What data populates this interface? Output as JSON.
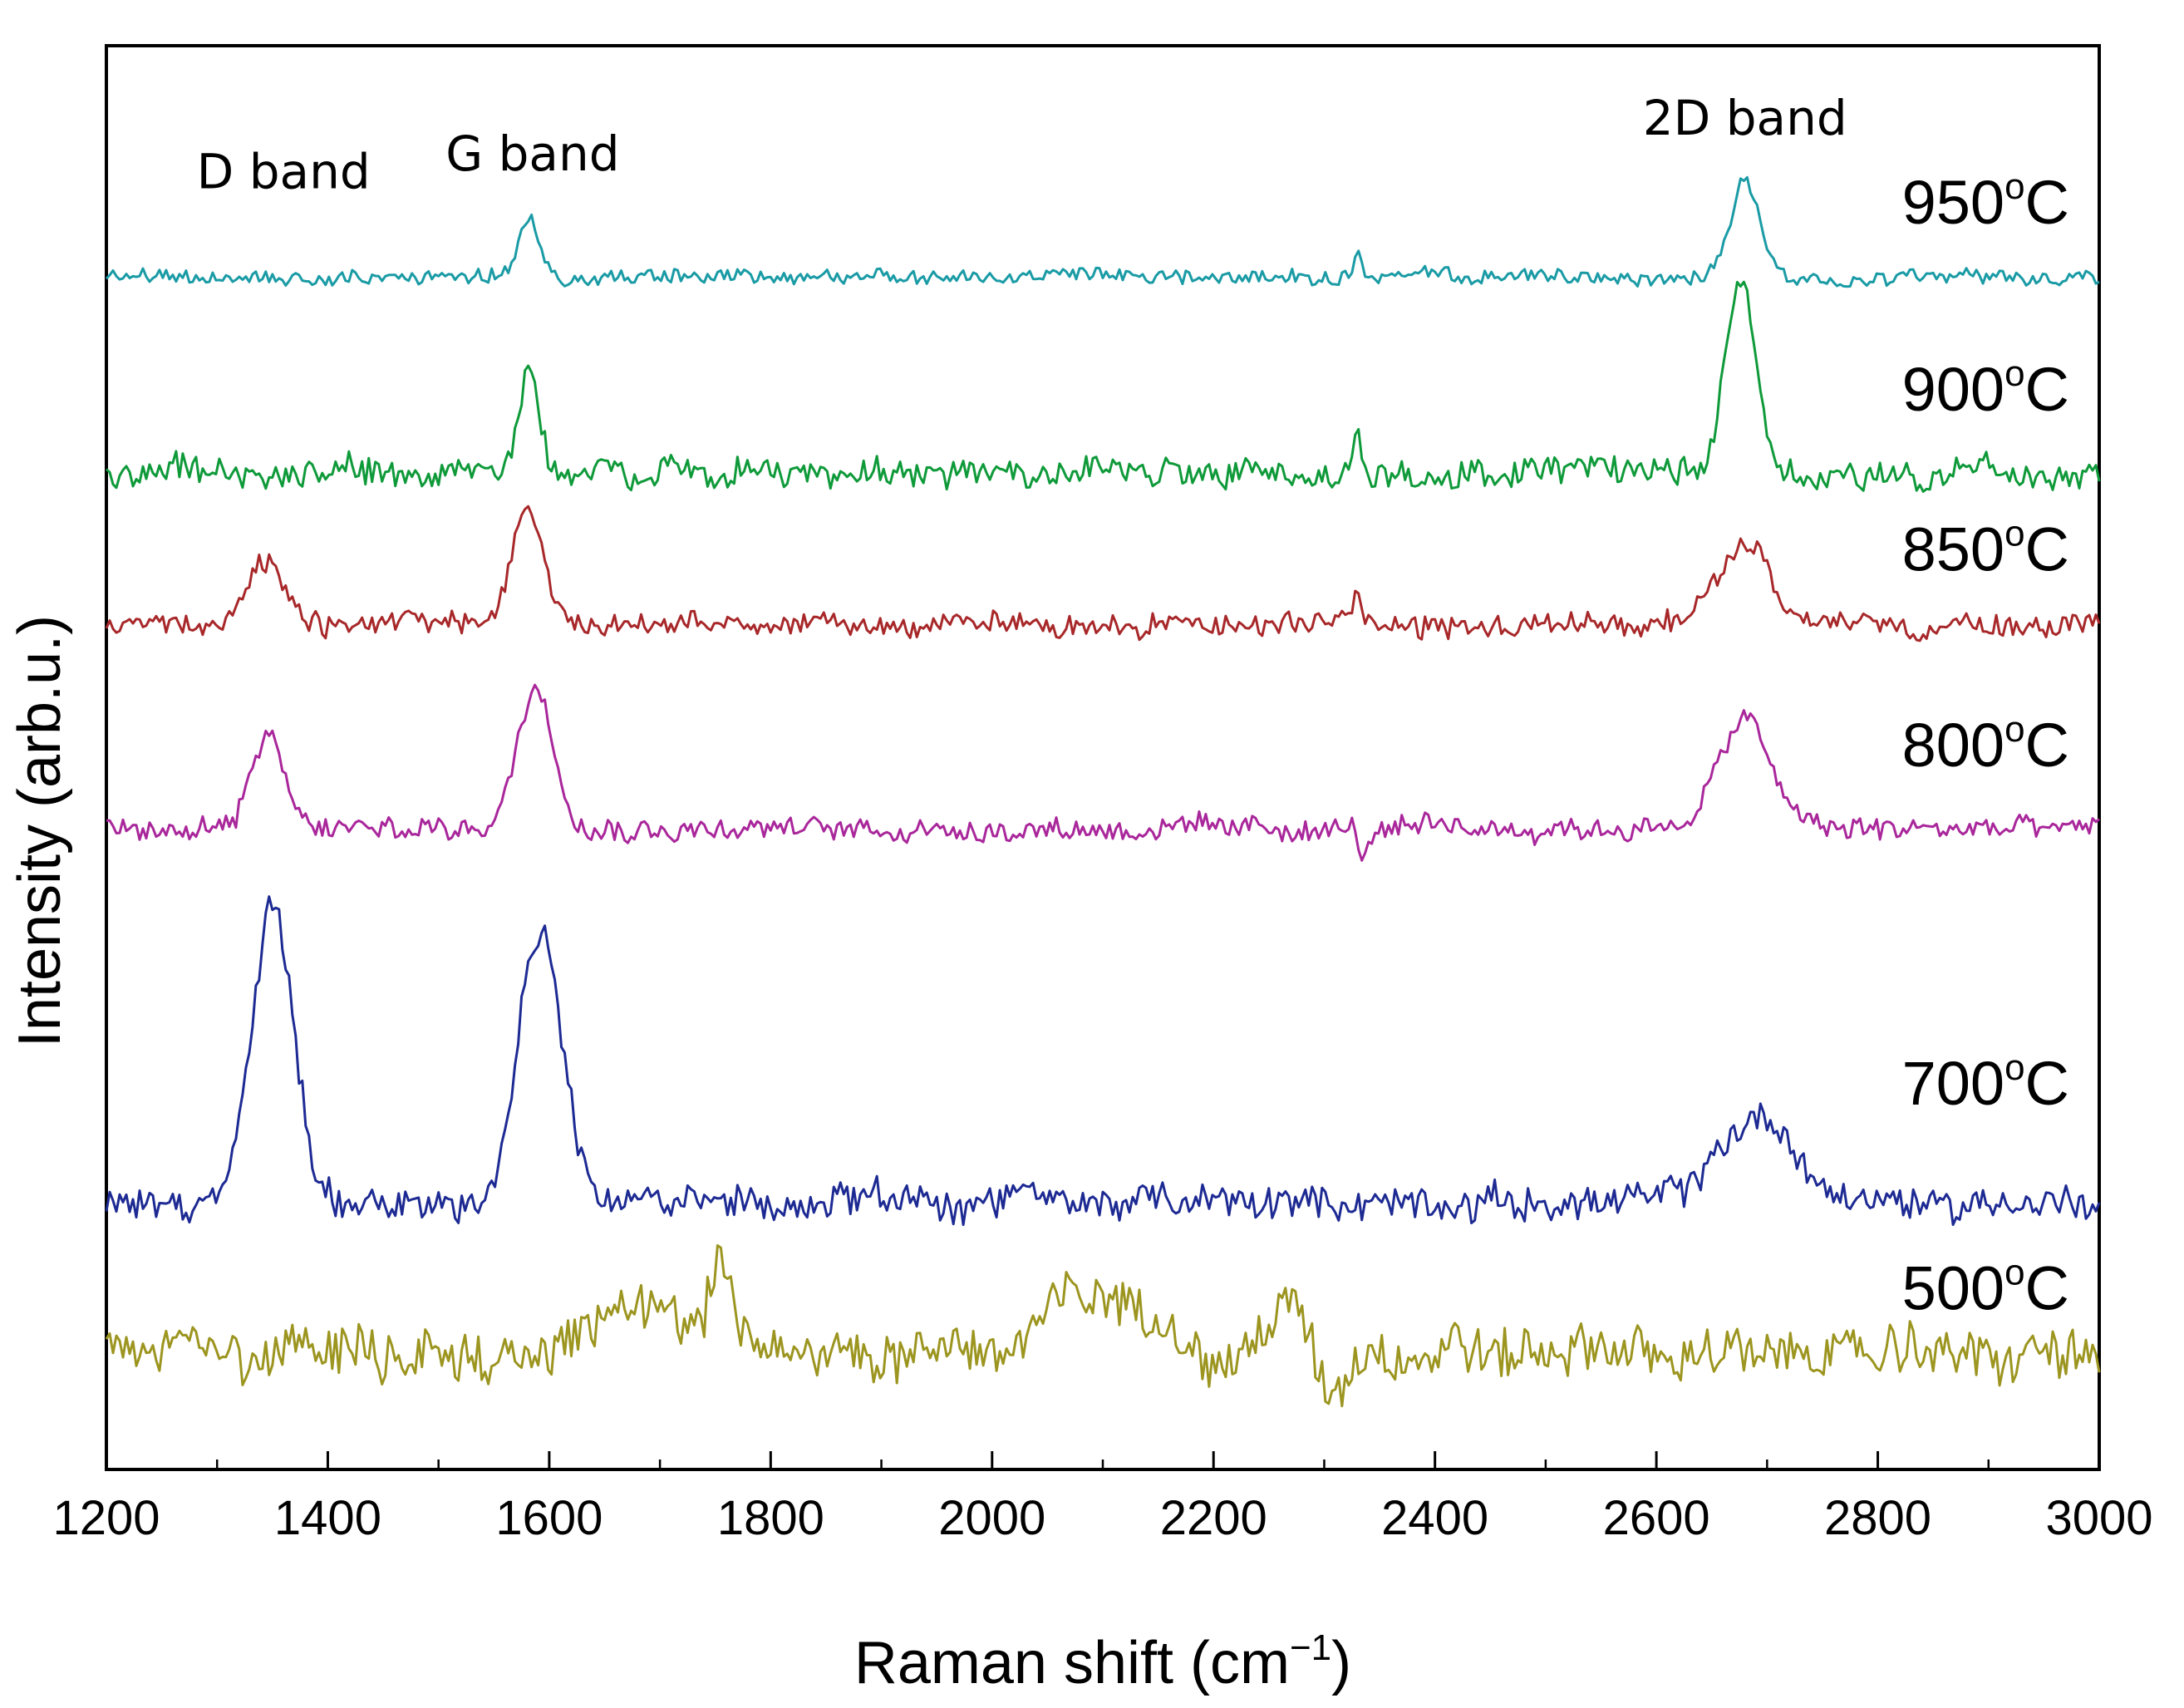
{
  "chart_data": {
    "type": "line",
    "title": "",
    "xlabel": "Raman shift (cm",
    "xlabel_sup": "−1",
    "xlabel_close": ")",
    "ylabel": "Intensity (arb.u.)",
    "xlim": [
      1200,
      3000
    ],
    "ylim": [
      0,
      16
    ],
    "grid": false,
    "legend": "none",
    "xticks": [
      1200,
      1400,
      1600,
      1800,
      2000,
      2200,
      2400,
      2600,
      2800,
      3000
    ],
    "annotations": [
      {
        "text": "D band",
        "x": 1360,
        "y": 14.4
      },
      {
        "text": "G band",
        "x": 1585,
        "y": 14.6
      },
      {
        "text": "2D band",
        "x": 2680,
        "y": 15.0
      }
    ],
    "series": [
      {
        "name": "950°C",
        "label_deg": "o",
        "label_unit": "C",
        "color": "#1a9ba5",
        "baseline": 13.4,
        "noise": 0.14,
        "label_y": 14.0,
        "peaks": [
          {
            "center": 1582,
            "height": 0.65,
            "width": 12
          },
          {
            "center": 2330,
            "height": 0.35,
            "width": 4
          },
          {
            "center": 2680,
            "height": 1.1,
            "width": 18
          }
        ]
      },
      {
        "name": "900°C",
        "label_deg": "o",
        "label_unit": "C",
        "color": "#0f9a3a",
        "baseline": 11.2,
        "noise": 0.28,
        "label_y": 11.9,
        "peaks": [
          {
            "center": 1582,
            "height": 1.1,
            "width": 14
          },
          {
            "center": 2330,
            "height": 0.5,
            "width": 4
          },
          {
            "center": 2676,
            "height": 2.1,
            "width": 20
          }
        ]
      },
      {
        "name": "850°C",
        "label_deg": "o",
        "label_unit": "C",
        "color": "#a8282a",
        "baseline": 9.5,
        "noise": 0.22,
        "label_y": 10.1,
        "peaks": [
          {
            "center": 1345,
            "height": 0.7,
            "width": 22
          },
          {
            "center": 1580,
            "height": 1.3,
            "width": 20
          },
          {
            "center": 2330,
            "height": 0.4,
            "width": 4
          },
          {
            "center": 2680,
            "height": 1.0,
            "width": 30
          }
        ]
      },
      {
        "name": "800°C",
        "label_deg": "o",
        "label_unit": "C",
        "color": "#a9279b",
        "baseline": 7.2,
        "noise": 0.22,
        "label_y": 7.9,
        "peaks": [
          {
            "center": 1345,
            "height": 1.0,
            "width": 22
          },
          {
            "center": 1588,
            "height": 1.6,
            "width": 24
          },
          {
            "center": 2335,
            "height": -0.4,
            "width": 5
          },
          {
            "center": 2680,
            "height": 1.2,
            "width": 34
          }
        ]
      },
      {
        "name": "700°C",
        "label_deg": "o",
        "label_unit": "C",
        "color": "#1d2a93",
        "baseline": 3.0,
        "noise": 0.32,
        "label_y": 4.1,
        "peaks": [
          {
            "center": 1350,
            "height": 3.3,
            "width": 26
          },
          {
            "center": 1592,
            "height": 3.0,
            "width": 28
          },
          {
            "center": 2690,
            "height": 0.95,
            "width": 48
          }
        ]
      },
      {
        "name": "500°C",
        "label_deg": "o",
        "label_unit": "C",
        "color": "#9c9520",
        "baseline": 1.3,
        "noise": 0.5,
        "label_y": 1.8,
        "peaks": [
          {
            "center": 1690,
            "height": 0.6,
            "width": 60
          },
          {
            "center": 1755,
            "height": 0.9,
            "width": 12
          },
          {
            "center": 2090,
            "height": 0.7,
            "width": 60
          },
          {
            "center": 2270,
            "height": 0.6,
            "width": 25
          },
          {
            "center": 2305,
            "height": -0.6,
            "width": 20
          }
        ]
      }
    ]
  }
}
